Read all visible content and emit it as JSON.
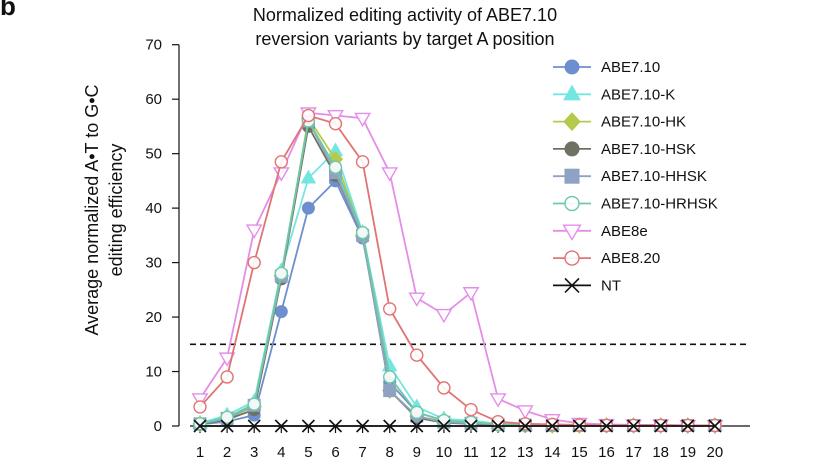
{
  "panel_label": "b",
  "chart_data": {
    "type": "line",
    "title": "Normalized editing activity of ABE7.10 reversion variants by target A position",
    "title_lines": [
      "Normalized editing activity of ABE7.10",
      "reversion variants by target A position"
    ],
    "xlabel": "",
    "ylabel": "Average normalized A•T to G•C editing efficiency",
    "ylabel_lines": [
      "Average normalized A•T to G•C",
      "editing efficiency"
    ],
    "categories": [
      "1",
      "2",
      "3",
      "4",
      "5",
      "6",
      "7",
      "8",
      "9",
      "10",
      "11",
      "12",
      "13",
      "14",
      "15",
      "16",
      "17",
      "18",
      "19",
      "20"
    ],
    "ylim": [
      0,
      70
    ],
    "yticks": [
      0,
      10,
      20,
      30,
      40,
      50,
      60,
      70
    ],
    "threshold": 15,
    "grid": false,
    "legend_position": "right",
    "series": [
      {
        "name": "ABE7.10",
        "color": "#6e8fcf",
        "marker": "circle",
        "filled": true,
        "values": [
          0.3,
          0.8,
          2,
          21,
          40,
          45,
          34.5,
          8,
          2.5,
          1,
          0.8,
          0.4,
          0.2,
          0.2,
          0.1,
          0.1,
          0.1,
          0.1,
          0.1,
          0.1
        ]
      },
      {
        "name": "ABE7.10-K",
        "color": "#74e6e2",
        "marker": "triangle-up",
        "filled": true,
        "values": [
          0.5,
          2,
          4.5,
          28.5,
          45.5,
          50.5,
          35.5,
          11,
          3.5,
          1.3,
          1,
          0.4,
          0.2,
          0.2,
          0.1,
          0.1,
          0.1,
          0.1,
          0.1,
          0.1
        ]
      },
      {
        "name": "ABE7.10-HK",
        "color": "#b7c94c",
        "marker": "diamond",
        "filled": true,
        "values": [
          0.4,
          1.5,
          3.5,
          27.5,
          56.5,
          49,
          35,
          6.5,
          1.8,
          0.8,
          0.5,
          0.3,
          0.2,
          0.1,
          0.1,
          0.1,
          0.1,
          0.1,
          0.1,
          0.1
        ]
      },
      {
        "name": "ABE7.10-HSK",
        "color": "#6e7263",
        "marker": "circle",
        "filled": true,
        "values": [
          0.3,
          1.2,
          3,
          27,
          55,
          46,
          35,
          6.5,
          1.5,
          0.6,
          0.4,
          0.2,
          0.1,
          0.1,
          0.1,
          0.1,
          0.1,
          0.1,
          0.1,
          0.1
        ]
      },
      {
        "name": "ABE7.10-HHSK",
        "color": "#8fa2c3",
        "marker": "square",
        "filled": true,
        "values": [
          0.4,
          1.4,
          3.8,
          27.5,
          56,
          46.5,
          35,
          6.5,
          1.8,
          0.7,
          0.5,
          0.3,
          0.2,
          0.1,
          0.1,
          0.1,
          0.1,
          0.1,
          0.1,
          0.1
        ]
      },
      {
        "name": "ABE7.10-HRHSK",
        "color": "#6fc9a4",
        "marker": "circle",
        "filled": false,
        "values": [
          0.4,
          1.6,
          4,
          28,
          56,
          47.5,
          35.5,
          9,
          2.5,
          1,
          0.7,
          0.3,
          0.2,
          0.1,
          0.1,
          0.1,
          0.1,
          0.1,
          0.1,
          0.1
        ]
      },
      {
        "name": "ABE8e",
        "color": "#e48ee8",
        "marker": "triangle-down",
        "filled": false,
        "values": [
          5,
          12.5,
          36,
          46.5,
          57.5,
          57,
          56.5,
          46.5,
          23.5,
          20.5,
          24.5,
          5,
          2.8,
          1.2,
          0.5,
          0.3,
          0.2,
          0.2,
          0.1,
          0.1
        ]
      },
      {
        "name": "ABE8.20",
        "color": "#e07474",
        "marker": "circle",
        "filled": false,
        "values": [
          3.5,
          9,
          30,
          48.5,
          57,
          55.5,
          48.5,
          21.5,
          13,
          7,
          3,
          0.8,
          0.4,
          0.3,
          0.2,
          0.1,
          0.1,
          0.1,
          0.1,
          0.1
        ]
      },
      {
        "name": "NT",
        "color": "#111111",
        "marker": "x",
        "filled": false,
        "values": [
          0,
          0,
          0,
          0,
          0,
          0,
          0,
          0,
          0,
          0,
          0,
          0,
          0,
          0,
          0,
          0,
          0,
          0,
          0,
          0
        ]
      }
    ]
  }
}
